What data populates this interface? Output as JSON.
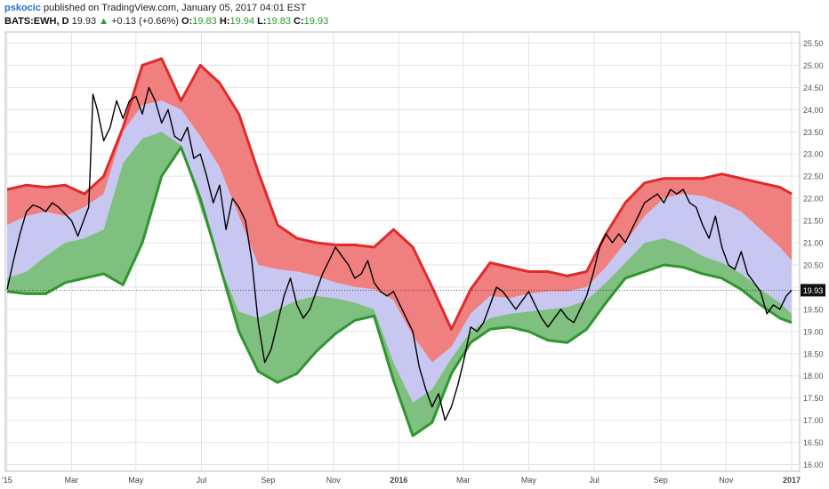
{
  "header": {
    "author": "pskocic",
    "published_text": "published on TradingView.com, January 05, 2017 04:01 EST",
    "symbol": "BATS:EWH, D",
    "last": "19.93",
    "change": "+0.13 (+0.66%)",
    "o_label": "O:",
    "o_value": "19.83",
    "h_label": "H:",
    "h_value": "19.94",
    "l_label": "L:",
    "l_value": "19.83",
    "c_label": "C:",
    "c_value": "19.93"
  },
  "colors": {
    "upper_band": "#f08080",
    "upper_line": "#e02a2a",
    "middle_band": "#c7c7f2",
    "lower_band": "#7fbf7f",
    "lower_line": "#2f962f",
    "price_line": "#000000",
    "grid": "#e3e3e3",
    "up_arrow": "#2a9a2a"
  },
  "chart_data": {
    "type": "line",
    "title": "",
    "ylim": [
      15.85,
      25.75
    ],
    "grid": true,
    "last_price_label": "19.93",
    "y_ticks": [
      "16.00",
      "16.50",
      "17.00",
      "17.50",
      "18.00",
      "18.50",
      "19.00",
      "19.50",
      "20.00",
      "20.50",
      "21.00",
      "21.50",
      "22.00",
      "22.50",
      "23.00",
      "23.50",
      "24.00",
      "24.50",
      "25.00",
      "25.50"
    ],
    "x_ticks": [
      {
        "label": "'15",
        "t": 0
      },
      {
        "label": "Mar",
        "t": 60
      },
      {
        "label": "May",
        "t": 120
      },
      {
        "label": "Jul",
        "t": 181
      },
      {
        "label": "Sep",
        "t": 243
      },
      {
        "label": "Nov",
        "t": 304
      },
      {
        "label": "2016",
        "t": 365
      },
      {
        "label": "Mar",
        "t": 425
      },
      {
        "label": "May",
        "t": 486
      },
      {
        "label": "Jul",
        "t": 547
      },
      {
        "label": "Sep",
        "t": 609
      },
      {
        "label": "Nov",
        "t": 670
      },
      {
        "label": "2017",
        "t": 731
      }
    ],
    "bands": {
      "t": [
        0,
        18,
        36,
        54,
        72,
        90,
        108,
        126,
        144,
        162,
        180,
        198,
        216,
        234,
        252,
        270,
        288,
        306,
        324,
        342,
        360,
        378,
        396,
        414,
        432,
        450,
        468,
        486,
        504,
        522,
        540,
        558,
        576,
        594,
        612,
        630,
        648,
        666,
        684,
        702,
        720,
        731
      ],
      "upper": [
        22.2,
        22.3,
        22.25,
        22.3,
        22.1,
        22.5,
        23.6,
        25.0,
        25.15,
        24.2,
        25.0,
        24.6,
        23.9,
        22.6,
        21.4,
        21.1,
        21.0,
        20.95,
        20.95,
        20.9,
        21.3,
        20.9,
        20.0,
        19.05,
        19.95,
        20.55,
        20.45,
        20.35,
        20.35,
        20.25,
        20.35,
        21.2,
        21.9,
        22.35,
        22.45,
        22.45,
        22.45,
        22.55,
        22.45,
        22.35,
        22.25,
        22.1
      ],
      "mid_hi": [
        21.4,
        21.6,
        21.7,
        21.6,
        21.8,
        22.1,
        23.5,
        24.1,
        24.2,
        24.0,
        23.4,
        22.7,
        21.6,
        20.5,
        20.4,
        20.35,
        20.25,
        20.1,
        20.0,
        19.95,
        19.7,
        18.9,
        18.3,
        18.65,
        19.4,
        19.8,
        19.75,
        19.85,
        19.9,
        19.9,
        20.0,
        20.45,
        21.0,
        21.6,
        22.0,
        22.1,
        22.05,
        21.9,
        21.7,
        21.3,
        20.9,
        20.6
      ],
      "mid_lo": [
        20.2,
        20.35,
        20.7,
        21.0,
        21.1,
        21.3,
        22.8,
        23.35,
        23.5,
        23.2,
        21.8,
        20.5,
        19.45,
        19.3,
        19.5,
        19.7,
        19.8,
        19.75,
        19.65,
        19.5,
        18.3,
        17.4,
        17.7,
        18.4,
        19.0,
        19.3,
        19.4,
        19.45,
        19.5,
        19.55,
        19.7,
        20.1,
        20.55,
        21.0,
        21.1,
        20.95,
        20.7,
        20.55,
        20.3,
        19.95,
        19.65,
        19.4
      ],
      "lower": [
        19.9,
        19.85,
        19.85,
        20.1,
        20.2,
        20.3,
        20.05,
        21.0,
        22.5,
        23.15,
        22.0,
        20.5,
        19.0,
        18.1,
        17.85,
        18.05,
        18.55,
        18.95,
        19.25,
        19.35,
        17.9,
        16.65,
        16.95,
        18.05,
        18.75,
        19.05,
        19.1,
        19.0,
        18.8,
        18.75,
        19.05,
        19.65,
        20.2,
        20.35,
        20.5,
        20.45,
        20.3,
        20.2,
        19.95,
        19.6,
        19.3,
        19.2
      ]
    },
    "price": {
      "t": [
        0,
        6,
        12,
        18,
        24,
        30,
        36,
        42,
        48,
        54,
        60,
        66,
        72,
        76,
        78,
        80,
        84,
        90,
        96,
        102,
        108,
        114,
        120,
        126,
        132,
        138,
        144,
        150,
        156,
        162,
        168,
        174,
        180,
        186,
        192,
        198,
        204,
        210,
        216,
        222,
        228,
        234,
        240,
        246,
        252,
        258,
        264,
        270,
        276,
        282,
        288,
        294,
        300,
        306,
        312,
        318,
        324,
        330,
        336,
        342,
        348,
        354,
        360,
        366,
        372,
        378,
        384,
        390,
        396,
        402,
        408,
        414,
        420,
        426,
        432,
        438,
        444,
        450,
        456,
        462,
        468,
        474,
        480,
        486,
        492,
        498,
        504,
        510,
        516,
        522,
        528,
        534,
        540,
        546,
        552,
        558,
        564,
        570,
        576,
        582,
        588,
        594,
        600,
        606,
        612,
        618,
        624,
        630,
        636,
        642,
        648,
        654,
        660,
        666,
        672,
        678,
        684,
        690,
        696,
        702,
        708,
        714,
        720,
        726,
        731
      ],
      "close": [
        19.95,
        20.6,
        21.2,
        21.7,
        21.85,
        21.8,
        21.7,
        21.9,
        21.8,
        21.65,
        21.5,
        21.15,
        21.55,
        21.8,
        23.0,
        24.35,
        24.0,
        23.3,
        23.6,
        24.2,
        23.8,
        24.2,
        24.3,
        23.9,
        24.5,
        24.2,
        23.7,
        24.0,
        23.4,
        23.3,
        23.6,
        22.9,
        23.0,
        22.5,
        21.9,
        22.3,
        21.3,
        22.0,
        21.8,
        21.5,
        20.6,
        19.2,
        18.3,
        18.6,
        19.2,
        19.8,
        20.2,
        19.6,
        19.3,
        19.5,
        19.9,
        20.3,
        20.6,
        20.9,
        20.7,
        20.5,
        20.2,
        20.3,
        20.6,
        20.1,
        19.9,
        19.8,
        19.9,
        19.6,
        19.3,
        19.0,
        18.2,
        17.7,
        17.3,
        17.6,
        17.0,
        17.3,
        17.8,
        18.4,
        19.1,
        19.0,
        19.2,
        19.6,
        20.0,
        19.9,
        19.7,
        19.5,
        19.7,
        19.9,
        19.6,
        19.3,
        19.1,
        19.3,
        19.5,
        19.3,
        19.2,
        19.5,
        19.8,
        20.3,
        20.9,
        21.2,
        21.0,
        21.2,
        21.0,
        21.3,
        21.6,
        21.9,
        22.0,
        22.1,
        21.9,
        22.2,
        22.1,
        22.2,
        21.9,
        21.8,
        21.4,
        21.1,
        21.6,
        20.9,
        20.5,
        20.4,
        20.8,
        20.3,
        20.1,
        19.9,
        19.4,
        19.6,
        19.5,
        19.8,
        19.93
      ]
    }
  }
}
